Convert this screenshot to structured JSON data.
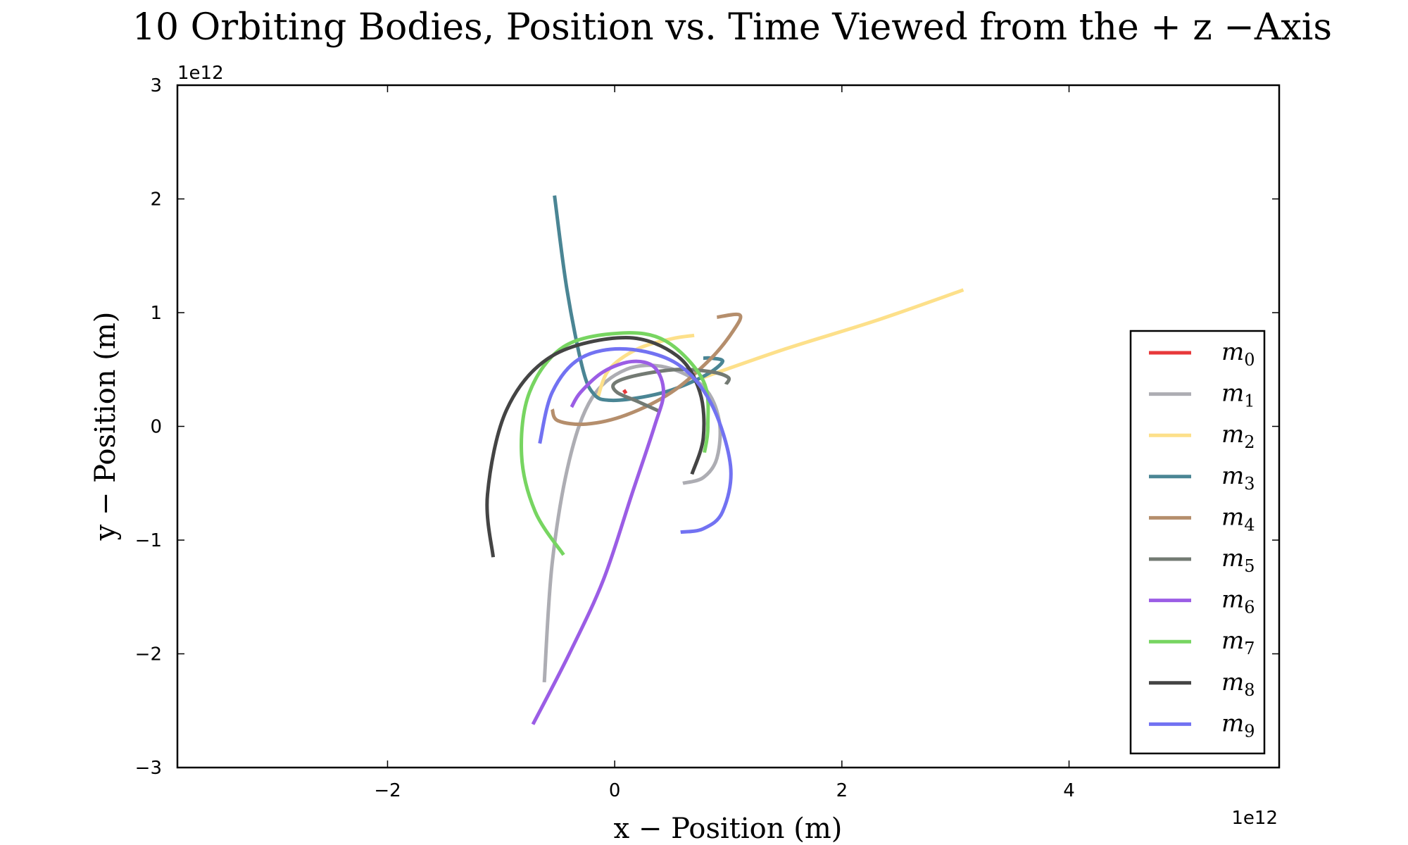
{
  "chart_data": {
    "type": "line",
    "title": "10 Orbiting Bodies,  Position vs.  Time Viewed from the + z −Axis",
    "xlabel": "x − Position (m)",
    "ylabel": "y − Position (m)",
    "xlim": [
      -3850000000000.0,
      5850000000000.0
    ],
    "ylim": [
      -3000000000000.0,
      3000000000000.0
    ],
    "x_ticks": [
      -2000000000000.0,
      0,
      2000000000000.0,
      4000000000000.0
    ],
    "x_tick_labels": [
      "−2",
      "0",
      "2",
      "4"
    ],
    "y_ticks": [
      -3000000000000.0,
      -2000000000000.0,
      -1000000000000.0,
      0,
      1000000000000.0,
      2000000000000.0,
      3000000000000.0
    ],
    "y_tick_labels": [
      "−3",
      "−2",
      "−1",
      "0",
      "1",
      "2",
      "3"
    ],
    "x_offset_label": "1e12",
    "y_offset_label": "1e12",
    "grid": false,
    "legend_position": "lower-right",
    "series": [
      {
        "name": "m",
        "sub": "0",
        "color": "#e8393b",
        "x": [
          80000000000.0,
          100000000000.0
        ],
        "y": [
          320000000000.0,
          290000000000.0
        ]
      },
      {
        "name": "m",
        "sub": "1",
        "color": "#adadb3",
        "x": [
          -620000000000.0,
          -550000000000.0,
          -400000000000.0,
          -200000000000.0,
          100000000000.0,
          450000000000.0,
          780000000000.0,
          920000000000.0,
          900000000000.0,
          780000000000.0,
          600000000000.0
        ],
        "y": [
          -2250000000000.0,
          -1200000000000.0,
          -300000000000.0,
          250000000000.0,
          500000000000.0,
          520000000000.0,
          350000000000.0,
          50000000000.0,
          -280000000000.0,
          -450000000000.0,
          -500000000000.0
        ]
      },
      {
        "name": "m",
        "sub": "2",
        "color": "#fde08a",
        "x": [
          -150000000000.0,
          -50000000000.0,
          200000000000.0,
          500000000000.0,
          700000000000.0
        ],
        "y": [
          250000000000.0,
          500000000000.0,
          680000000000.0,
          770000000000.0,
          800000000000.0
        ],
        "x2": [
          750000000000.0,
          1500000000000.0,
          2300000000000.0,
          3070000000000.0
        ],
        "y2": [
          420000000000.0,
          680000000000.0,
          930000000000.0,
          1200000000000.0
        ]
      },
      {
        "name": "m",
        "sub": "3",
        "color": "#4a8594",
        "x": [
          -530000000000.0,
          -420000000000.0,
          -280000000000.0,
          -180000000000.0,
          -50000000000.0,
          200000000000.0,
          500000000000.0,
          800000000000.0,
          950000000000.0,
          850000000000.0,
          780000000000.0
        ],
        "y": [
          2030000000000.0,
          1200000000000.0,
          500000000000.0,
          280000000000.0,
          230000000000.0,
          250000000000.0,
          320000000000.0,
          450000000000.0,
          570000000000.0,
          600000000000.0,
          600000000000.0
        ]
      },
      {
        "name": "m",
        "sub": "4",
        "color": "#b58e6c",
        "x": [
          -550000000000.0,
          -500000000000.0,
          -250000000000.0,
          100000000000.0,
          500000000000.0,
          850000000000.0,
          1050000000000.0,
          1100000000000.0,
          900000000000.0
        ],
        "y": [
          150000000000.0,
          50000000000.0,
          20000000000.0,
          100000000000.0,
          300000000000.0,
          600000000000.0,
          850000000000.0,
          980000000000.0,
          960000000000.0
        ]
      },
      {
        "name": "m",
        "sub": "5",
        "color": "#737a73",
        "x": [
          400000000000.0,
          200000000000.0,
          20000000000.0,
          0.0,
          200000000000.0,
          550000000000.0,
          850000000000.0,
          1000000000000.0,
          980000000000.0
        ],
        "y": [
          130000000000.0,
          220000000000.0,
          300000000000.0,
          380000000000.0,
          450000000000.0,
          500000000000.0,
          480000000000.0,
          430000000000.0,
          370000000000.0
        ]
      },
      {
        "name": "m",
        "sub": "6",
        "color": "#9b5de5",
        "x": [
          -720000000000.0,
          -400000000000.0,
          -100000000000.0,
          150000000000.0,
          350000000000.0,
          430000000000.0,
          350000000000.0,
          150000000000.0,
          -100000000000.0,
          -300000000000.0,
          -380000000000.0
        ],
        "y": [
          -2620000000000.0,
          -2000000000000.0,
          -1350000000000.0,
          -600000000000.0,
          0.0,
          300000000000.0,
          520000000000.0,
          570000000000.0,
          480000000000.0,
          300000000000.0,
          170000000000.0
        ]
      },
      {
        "name": "m",
        "sub": "7",
        "color": "#77d561",
        "x": [
          -450000000000.0,
          -700000000000.0,
          -820000000000.0,
          -750000000000.0,
          -450000000000.0,
          50000000000.0,
          450000000000.0,
          780000000000.0,
          820000000000.0,
          790000000000.0
        ],
        "y": [
          -1130000000000.0,
          -750000000000.0,
          -250000000000.0,
          300000000000.0,
          700000000000.0,
          820000000000.0,
          750000000000.0,
          400000000000.0,
          0.0,
          -230000000000.0
        ]
      },
      {
        "name": "m",
        "sub": "8",
        "color": "#444444",
        "x": [
          -1070000000000.0,
          -1120000000000.0,
          -950000000000.0,
          -550000000000.0,
          100000000000.0,
          550000000000.0,
          750000000000.0,
          780000000000.0,
          680000000000.0
        ],
        "y": [
          -1150000000000.0,
          -600000000000.0,
          150000000000.0,
          620000000000.0,
          780000000000.0,
          620000000000.0,
          300000000000.0,
          -100000000000.0,
          -420000000000.0
        ]
      },
      {
        "name": "m",
        "sub": "9",
        "color": "#7272f2",
        "x": [
          -660000000000.0,
          -550000000000.0,
          -300000000000.0,
          100000000000.0,
          550000000000.0,
          850000000000.0,
          1020000000000.0,
          950000000000.0,
          780000000000.0,
          580000000000.0
        ],
        "y": [
          -150000000000.0,
          300000000000.0,
          600000000000.0,
          680000000000.0,
          550000000000.0,
          200000000000.0,
          -350000000000.0,
          -750000000000.0,
          -900000000000.0,
          -930000000000.0
        ]
      }
    ]
  }
}
